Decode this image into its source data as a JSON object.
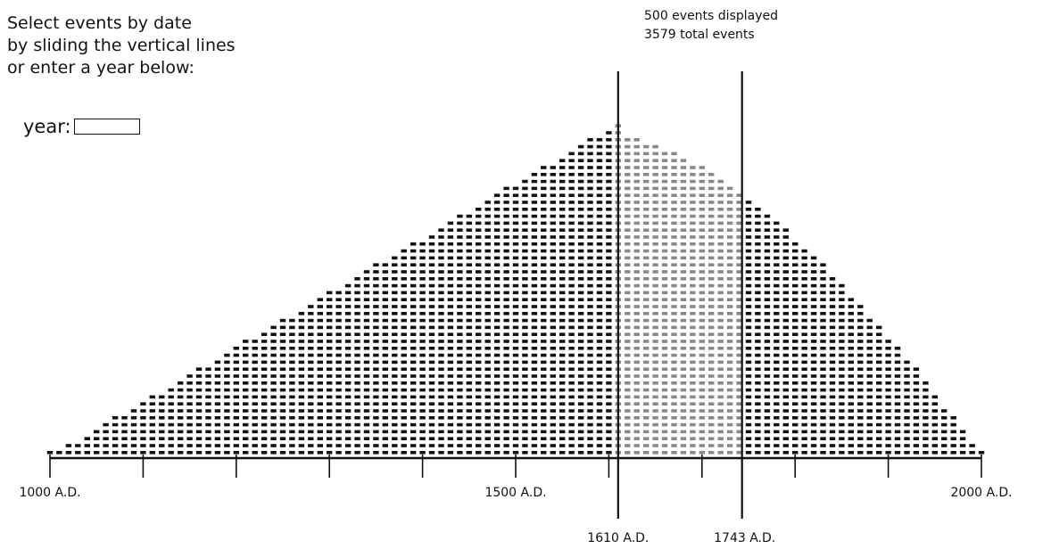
{
  "instructions": {
    "line1": "Select events by date",
    "line2": "by sliding the vertical lines",
    "line3": "or enter a year below:"
  },
  "year_field": {
    "label": "year:",
    "value": "",
    "placeholder": ""
  },
  "counts": {
    "displayed": "500 events displayed",
    "total": "3579 total events"
  },
  "axis": {
    "start_year": 1000,
    "end_year": 2000,
    "major_tick_step": 100,
    "labels": [
      {
        "year": 1000,
        "text": "1000 A.D."
      },
      {
        "year": 1500,
        "text": "1500 A.D."
      },
      {
        "year": 2000,
        "text": "2000 A.D."
      }
    ]
  },
  "selection": {
    "start_year": 1610,
    "end_year": 1743,
    "start_label": "1610 A.D.",
    "end_label": "1743 A.D."
  },
  "chart_data": {
    "type": "scatter",
    "title": "",
    "xlabel": "",
    "ylabel": "",
    "xlim": [
      1000,
      2000
    ],
    "peak_year": 1610,
    "max_events_per_column": 48,
    "column_step_years": 10,
    "colors": {
      "dot": "#111111",
      "selected_dot": "#888888",
      "line": "#111111"
    }
  }
}
